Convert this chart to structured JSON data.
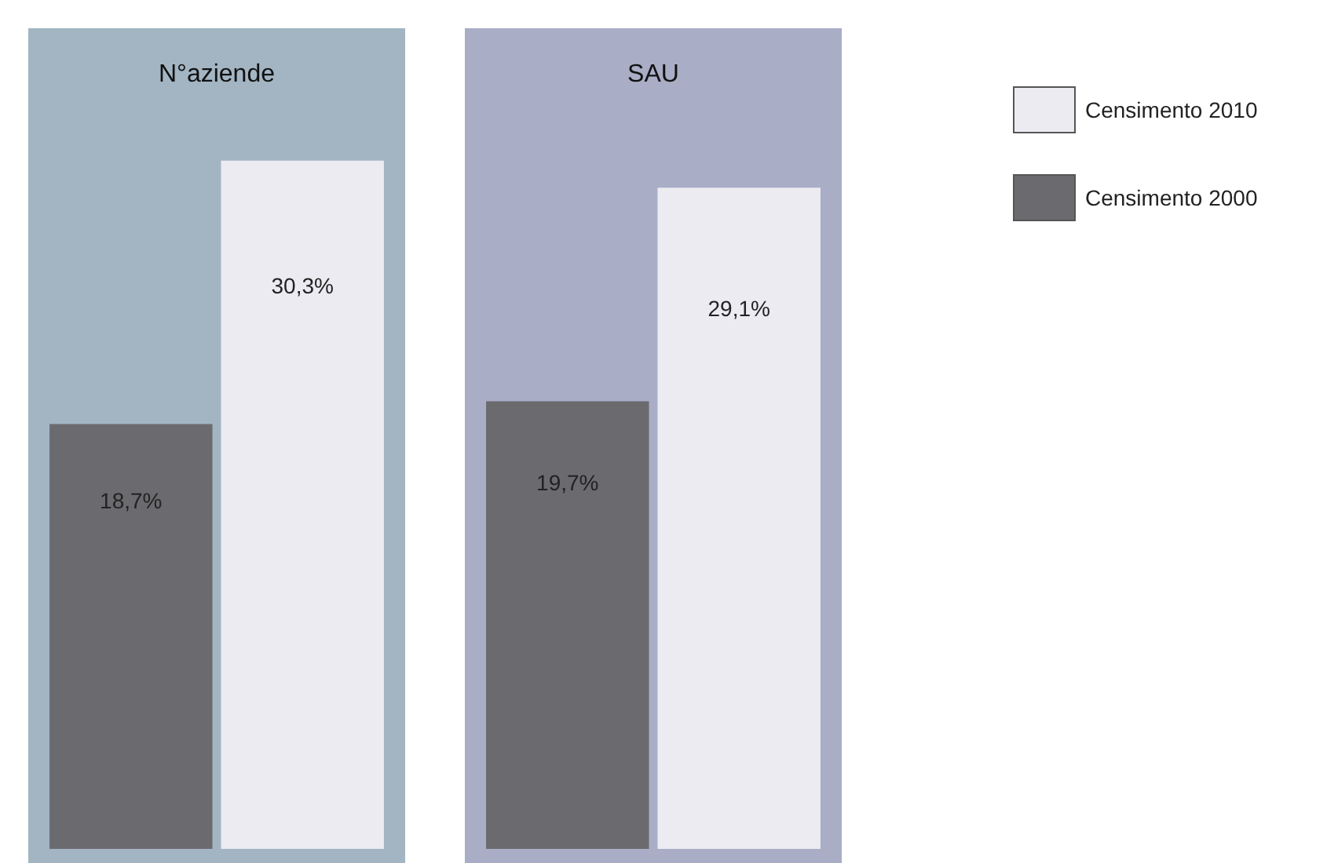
{
  "chart_data": [
    {
      "type": "bar",
      "title": "N°aziende",
      "categories": [
        null
      ],
      "tick_labels": false,
      "legend": false,
      "series": [
        {
          "color": "#6b6b6f",
          "values": [
            18.7
          ],
          "value_labels": [
            "18,7%"
          ]
        },
        {
          "color": "#ebebf1",
          "values": [
            30.3
          ],
          "value_labels": [
            "30,3%"
          ]
        }
      ]
    },
    {
      "type": "bar",
      "title": "SAU",
      "categories": [
        null
      ],
      "tick_labels": false,
      "legend": "right",
      "series": [
        {
          "name": "Censimento 2000",
          "color": "#6b6b6f",
          "values": [
            19.7
          ],
          "value_labels": [
            "19,7%"
          ]
        },
        {
          "name": "Censimento 2010",
          "color": "#ebebf1",
          "values": [
            29.1
          ],
          "value_labels": [
            "29,1%"
          ]
        }
      ]
    }
  ]
}
